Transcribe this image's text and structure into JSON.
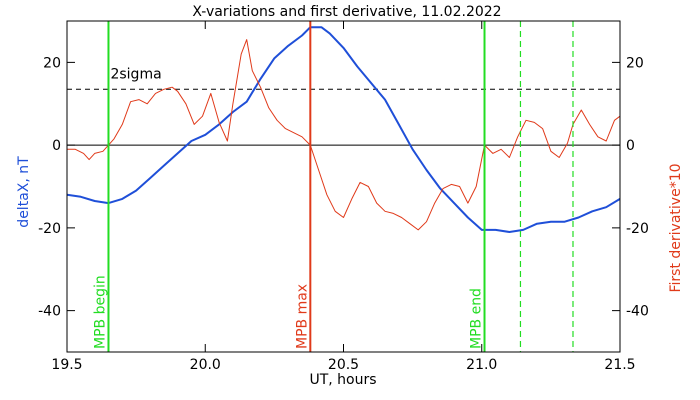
{
  "chart_data": {
    "type": "line",
    "title": "X-variations and first derivative, 11.02.2022",
    "xlabel": "UT, hours",
    "ylabel_left": "deltaX, nT",
    "ylabel_right": "First derivative*10",
    "xlim": [
      19.5,
      21.5
    ],
    "ylim": [
      -50,
      30
    ],
    "x_ticks": [
      19.5,
      20.0,
      20.5,
      21.0,
      21.5
    ],
    "x_tick_labels": [
      "19.5",
      "20.0",
      "20.5",
      "21.0",
      "21.5"
    ],
    "y_ticks": [
      -40,
      -20,
      0,
      20
    ],
    "y_tick_labels": [
      "-40",
      "-20",
      "0",
      "20"
    ],
    "grid": false,
    "colors": {
      "deltaX": "#1f4fd8",
      "derivative": "#e03a1a",
      "mpb_begin_end": "#22dd22",
      "mpb_max": "#e03a1a",
      "zero_line": "#000000",
      "sigma_line": "#000000"
    },
    "reference_lines": {
      "zero": 0,
      "sigma": {
        "label": "2sigma",
        "value": 13.5
      }
    },
    "markers": [
      {
        "label": "MPB begin",
        "x": 19.65,
        "style": "solid",
        "color": "#22dd22"
      },
      {
        "label": "MPB max",
        "x": 20.38,
        "style": "solid",
        "color": "#e03a1a"
      },
      {
        "label": "MPB end",
        "x": 21.01,
        "style": "solid",
        "color": "#22dd22"
      },
      {
        "label": "",
        "x": 21.14,
        "style": "dashed",
        "color": "#22dd22"
      },
      {
        "label": "",
        "x": 21.33,
        "style": "dashed",
        "color": "#22dd22"
      }
    ],
    "series": [
      {
        "axis": "left",
        "color": "#1f4fd8",
        "x": [
          19.5,
          19.55,
          19.6,
          19.65,
          19.7,
          19.75,
          19.8,
          19.85,
          19.9,
          19.95,
          20.0,
          20.05,
          20.1,
          20.15,
          20.2,
          20.25,
          20.3,
          20.35,
          20.38,
          20.42,
          20.45,
          20.5,
          20.55,
          20.6,
          20.65,
          20.7,
          20.75,
          20.8,
          20.85,
          20.9,
          20.95,
          21.0,
          21.05,
          21.1,
          21.15,
          21.2,
          21.25,
          21.3,
          21.35,
          21.4,
          21.45,
          21.5
        ],
        "y": [
          -12,
          -12.5,
          -13.5,
          -14,
          -13,
          -11,
          -8,
          -5,
          -2,
          1,
          2.5,
          5,
          8,
          10.5,
          16,
          21,
          24,
          26.5,
          28.5,
          28.5,
          27,
          23.5,
          19,
          15,
          11,
          5,
          -1,
          -6,
          -10.5,
          -14,
          -17.5,
          -20.5,
          -20.5,
          -21,
          -20.5,
          -19,
          -18.5,
          -18.5,
          -17.5,
          -16,
          -15,
          -13
        ]
      },
      {
        "axis": "right",
        "color": "#e03a1a",
        "x": [
          19.5,
          19.53,
          19.56,
          19.58,
          19.6,
          19.63,
          19.65,
          19.67,
          19.7,
          19.73,
          19.76,
          19.79,
          19.82,
          19.85,
          19.88,
          19.9,
          19.93,
          19.96,
          19.99,
          20.02,
          20.05,
          20.08,
          20.1,
          20.13,
          20.15,
          20.17,
          20.2,
          20.23,
          20.26,
          20.29,
          20.32,
          20.35,
          20.38,
          20.41,
          20.44,
          20.47,
          20.5,
          20.53,
          20.56,
          20.59,
          20.62,
          20.65,
          20.68,
          20.71,
          20.74,
          20.77,
          20.8,
          20.83,
          20.86,
          20.89,
          20.92,
          20.95,
          20.98,
          21.01,
          21.04,
          21.07,
          21.1,
          21.13,
          21.16,
          21.19,
          21.22,
          21.25,
          21.28,
          21.31,
          21.33,
          21.36,
          21.39,
          21.42,
          21.45,
          21.48,
          21.5
        ],
        "y": [
          -1,
          -1,
          -2,
          -3.5,
          -2,
          -1.5,
          0,
          1.5,
          5,
          10.5,
          11,
          10,
          12.5,
          13.5,
          14,
          13,
          10,
          5,
          7,
          12.5,
          5.5,
          1,
          10,
          22,
          25.5,
          18,
          14,
          9,
          6,
          4,
          3,
          2,
          0,
          -6,
          -12,
          -16,
          -17.5,
          -13,
          -9,
          -10,
          -14,
          -16,
          -16.5,
          -17.5,
          -19,
          -20.5,
          -18.5,
          -14,
          -10.5,
          -9.5,
          -10,
          -14,
          -10,
          0,
          -2,
          -1,
          -3,
          2,
          6,
          5.5,
          4,
          -1.5,
          -3,
          0.5,
          5,
          8.5,
          5,
          2,
          1,
          6,
          7
        ]
      }
    ]
  }
}
